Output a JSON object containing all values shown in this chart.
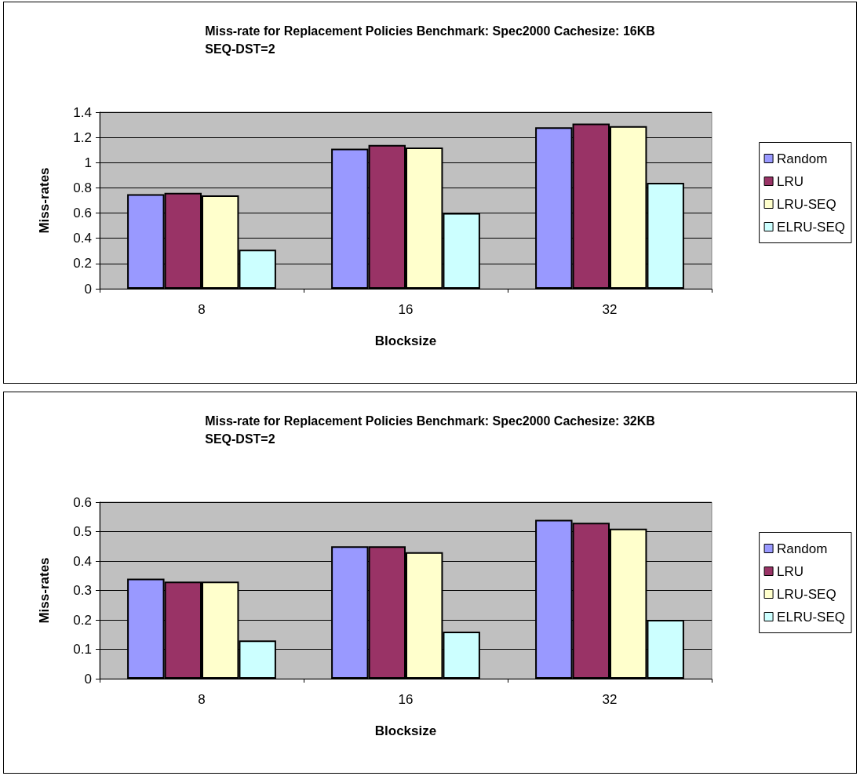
{
  "chart_data": [
    {
      "type": "bar",
      "title": "Miss-rate for Replacement Policies Benchmark: Spec2000 Cachesize: 16KB\nSEQ-DST=2",
      "xlabel": "Blocksize",
      "ylabel": "Miss-rates",
      "categories": [
        "8",
        "16",
        "32"
      ],
      "series": [
        {
          "name": "Random",
          "color": "#9999ff",
          "values": [
            0.75,
            1.11,
            1.28
          ]
        },
        {
          "name": "LRU",
          "color": "#993366",
          "values": [
            0.76,
            1.14,
            1.31
          ]
        },
        {
          "name": "LRU-SEQ",
          "color": "#ffffcc",
          "values": [
            0.74,
            1.12,
            1.29
          ]
        },
        {
          "name": "ELRU-SEQ",
          "color": "#ccffff",
          "values": [
            0.31,
            0.6,
            0.84
          ]
        }
      ],
      "ylim": [
        0,
        1.4
      ],
      "yticks": [
        0,
        0.2,
        0.4,
        0.6,
        0.8,
        1,
        1.2,
        1.4
      ],
      "grid": "y",
      "legend": "right"
    },
    {
      "type": "bar",
      "title": "Miss-rate for Replacement Policies Benchmark: Spec2000 Cachesize: 32KB\nSEQ-DST=2",
      "xlabel": "Blocksize",
      "ylabel": "Miss-rates",
      "categories": [
        "8",
        "16",
        "32"
      ],
      "series": [
        {
          "name": "Random",
          "color": "#9999ff",
          "values": [
            0.34,
            0.45,
            0.54
          ]
        },
        {
          "name": "LRU",
          "color": "#993366",
          "values": [
            0.33,
            0.45,
            0.53
          ]
        },
        {
          "name": "LRU-SEQ",
          "color": "#ffffcc",
          "values": [
            0.33,
            0.43,
            0.51
          ]
        },
        {
          "name": "ELRU-SEQ",
          "color": "#ccffff",
          "values": [
            0.13,
            0.16,
            0.2
          ]
        }
      ],
      "ylim": [
        0,
        0.6
      ],
      "yticks": [
        0,
        0.1,
        0.2,
        0.3,
        0.4,
        0.5,
        0.6
      ],
      "grid": "y",
      "legend": "right"
    }
  ]
}
